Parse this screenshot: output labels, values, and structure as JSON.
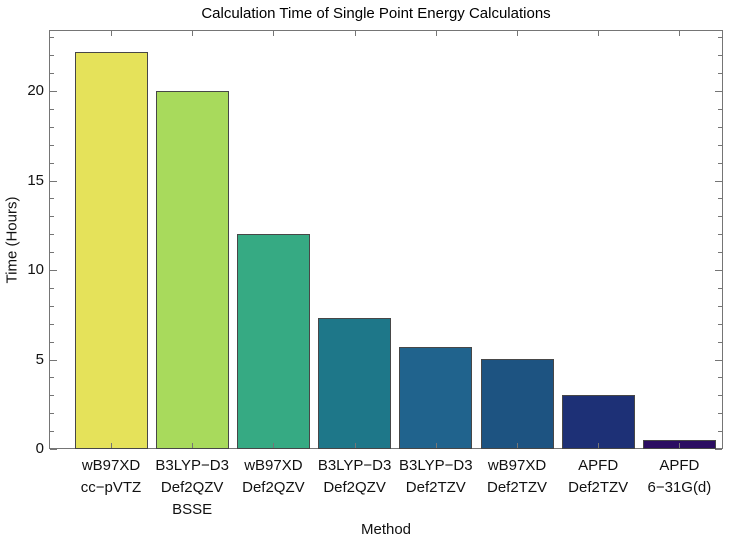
{
  "chart_data": {
    "type": "bar",
    "title": "Calculation Time of Single Point Energy Calculations",
    "xlabel": "Method",
    "ylabel": "Time (Hours)",
    "ylim": [
      0,
      23.4
    ],
    "yticks": [
      0,
      5,
      10,
      15,
      20
    ],
    "minor_tick_step": 1,
    "grid": false,
    "legend": null,
    "categories": [
      [
        "wB97XD",
        "cc−pVTZ"
      ],
      [
        "B3LYP−D3",
        "Def2QZV",
        "BSSE"
      ],
      [
        "wB97XD",
        "Def2QZV"
      ],
      [
        "B3LYP−D3",
        "Def2QZV"
      ],
      [
        "B3LYP−D3",
        "Def2TZV"
      ],
      [
        "wB97XD",
        "Def2TZV"
      ],
      [
        "APFD",
        "Def2TZV"
      ],
      [
        "APFD",
        "6−31G(d)"
      ]
    ],
    "values": [
      22.2,
      20.0,
      12.0,
      7.3,
      5.7,
      5.0,
      3.0,
      0.5
    ],
    "bar_colors": [
      "#e5e25a",
      "#a8da5c",
      "#36aa83",
      "#1e7789",
      "#20638d",
      "#1d5381",
      "#1d3076",
      "#2b0d61"
    ],
    "bar_edge_color": "#474747",
    "frame_color": "#757575"
  }
}
